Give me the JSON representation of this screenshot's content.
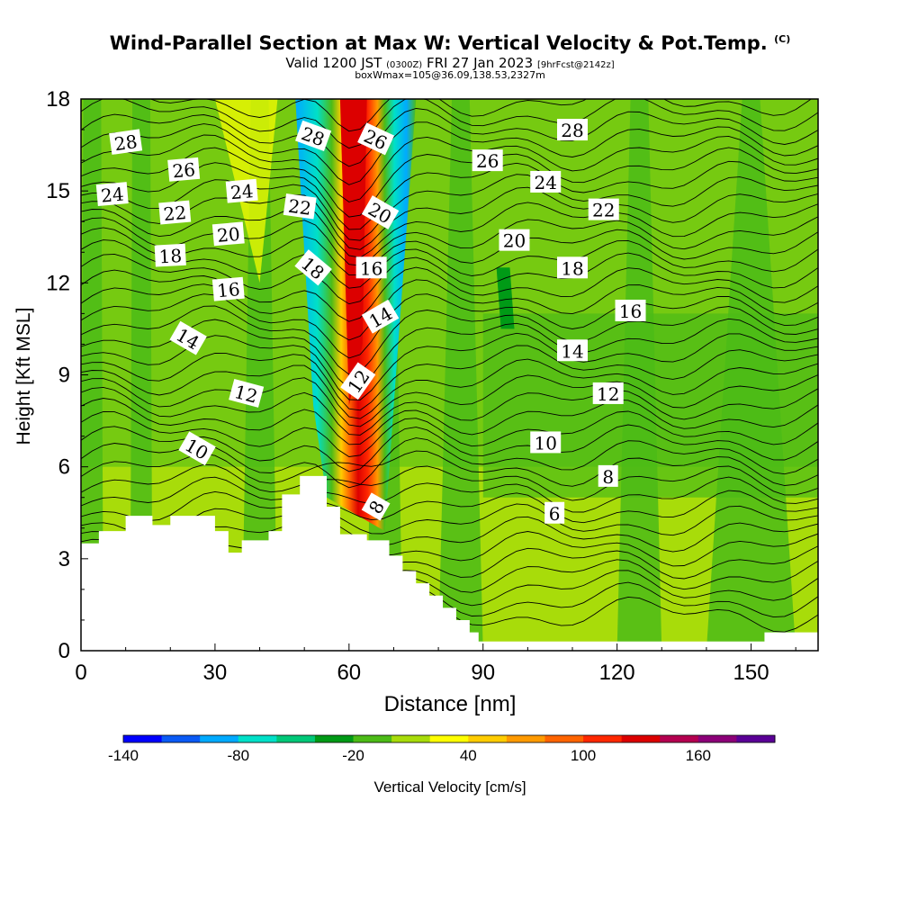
{
  "header": {
    "title_main": "Wind-Parallel Section at Max W: Vertical Velocity & Pot.Temp.",
    "title_mark": "(C)",
    "valid_a": "Valid 1200 JST",
    "valid_b": "(0300Z)",
    "valid_c": "FRI 27 Jan 2023",
    "valid_d": "[9hrFcst@2142z]",
    "box": "boxWmax=105@36.09,138.53,2327m"
  },
  "chart_data": {
    "type": "heatmap",
    "xlabel": "Distance [nm]",
    "ylabel": "Height [Kft MSL]",
    "xlim": [
      0,
      165
    ],
    "ylim": [
      0,
      18
    ],
    "x_ticks": [
      0,
      30,
      60,
      90,
      120,
      150
    ],
    "y_ticks": [
      0,
      3,
      6,
      9,
      12,
      15,
      18
    ],
    "colorbar": {
      "label": "Vertical Velocity [cm/s]",
      "min": -140,
      "step": 20,
      "tick_labels": [
        -140,
        -80,
        -20,
        40,
        100,
        160
      ],
      "colors": [
        "#0000ff",
        "#0a5af5",
        "#00aaff",
        "#00e0c8",
        "#00c878",
        "#009a16",
        "#4cbb17",
        "#a8dc0a",
        "#ffff00",
        "#ffcc00",
        "#ff9a00",
        "#ff6400",
        "#ff2800",
        "#dc0000",
        "#b40050",
        "#8c0078",
        "#5a0096"
      ]
    },
    "terrain_kft": [
      [
        0,
        3.5
      ],
      [
        4,
        3.5
      ],
      [
        4,
        3.9
      ],
      [
        10,
        3.9
      ],
      [
        10,
        4.4
      ],
      [
        16,
        4.4
      ],
      [
        16,
        4.1
      ],
      [
        20,
        4.1
      ],
      [
        20,
        4.4
      ],
      [
        30,
        4.4
      ],
      [
        30,
        3.9
      ],
      [
        33,
        3.9
      ],
      [
        33,
        3.2
      ],
      [
        36,
        3.2
      ],
      [
        36,
        3.6
      ],
      [
        42,
        3.6
      ],
      [
        42,
        3.9
      ],
      [
        45,
        3.9
      ],
      [
        45,
        5.1
      ],
      [
        49,
        5.1
      ],
      [
        49,
        5.7
      ],
      [
        55,
        5.7
      ],
      [
        55,
        4.7
      ],
      [
        58,
        4.7
      ],
      [
        58,
        3.8
      ],
      [
        64,
        3.8
      ],
      [
        64,
        3.6
      ],
      [
        69,
        3.6
      ],
      [
        69,
        3.1
      ],
      [
        72,
        3.1
      ],
      [
        72,
        2.6
      ],
      [
        75,
        2.6
      ],
      [
        75,
        2.2
      ],
      [
        78,
        2.2
      ],
      [
        78,
        1.8
      ],
      [
        81,
        1.8
      ],
      [
        81,
        1.4
      ],
      [
        84,
        1.4
      ],
      [
        84,
        1.0
      ],
      [
        87,
        1.0
      ],
      [
        87,
        0.6
      ],
      [
        89,
        0.6
      ],
      [
        89,
        0.3
      ],
      [
        153,
        0.3
      ],
      [
        153,
        0.6
      ],
      [
        165,
        0.6
      ],
      [
        165,
        0
      ]
    ],
    "theta_labels": [
      {
        "v": "28",
        "x": 10,
        "y": 16.6,
        "r": -8
      },
      {
        "v": "26",
        "x": 23,
        "y": 15.7,
        "r": -5
      },
      {
        "v": "24",
        "x": 7,
        "y": 14.9,
        "r": -5
      },
      {
        "v": "24",
        "x": 36,
        "y": 15.0,
        "r": -5
      },
      {
        "v": "22",
        "x": 21,
        "y": 14.3,
        "r": -5
      },
      {
        "v": "20",
        "x": 33,
        "y": 13.6,
        "r": -5
      },
      {
        "v": "18",
        "x": 20,
        "y": 12.9,
        "r": -3
      },
      {
        "v": "16",
        "x": 33,
        "y": 11.8,
        "r": -5
      },
      {
        "v": "14",
        "x": 24,
        "y": 10.2,
        "r": 30
      },
      {
        "v": "12",
        "x": 37,
        "y": 8.4,
        "r": 15
      },
      {
        "v": "10",
        "x": 26,
        "y": 6.6,
        "r": 30
      },
      {
        "v": "28",
        "x": 52,
        "y": 16.8,
        "r": 20
      },
      {
        "v": "22",
        "x": 49,
        "y": 14.5,
        "r": 8
      },
      {
        "v": "18",
        "x": 52,
        "y": 12.5,
        "r": 40
      },
      {
        "v": "26",
        "x": 66,
        "y": 16.7,
        "r": 25
      },
      {
        "v": "20",
        "x": 67,
        "y": 14.3,
        "r": 30
      },
      {
        "v": "16",
        "x": 65,
        "y": 12.5,
        "r": 0
      },
      {
        "v": "14",
        "x": 67,
        "y": 10.9,
        "r": -30
      },
      {
        "v": "12",
        "x": 62,
        "y": 8.8,
        "r": -55
      },
      {
        "v": "8",
        "x": 66,
        "y": 4.7,
        "r": -60
      },
      {
        "v": "28",
        "x": 110,
        "y": 17.0,
        "r": 0
      },
      {
        "v": "26",
        "x": 91,
        "y": 16.0,
        "r": 0
      },
      {
        "v": "24",
        "x": 104,
        "y": 15.3,
        "r": 0
      },
      {
        "v": "22",
        "x": 117,
        "y": 14.4,
        "r": 0
      },
      {
        "v": "20",
        "x": 97,
        "y": 13.4,
        "r": 0
      },
      {
        "v": "18",
        "x": 110,
        "y": 12.5,
        "r": 0
      },
      {
        "v": "16",
        "x": 123,
        "y": 11.1,
        "r": 0
      },
      {
        "v": "14",
        "x": 110,
        "y": 9.8,
        "r": 0
      },
      {
        "v": "12",
        "x": 118,
        "y": 8.4,
        "r": 0
      },
      {
        "v": "10",
        "x": 104,
        "y": 6.8,
        "r": 0
      },
      {
        "v": "8",
        "x": 118,
        "y": 5.7,
        "r": 0
      },
      {
        "v": "6",
        "x": 106,
        "y": 4.5,
        "r": 0
      }
    ]
  }
}
